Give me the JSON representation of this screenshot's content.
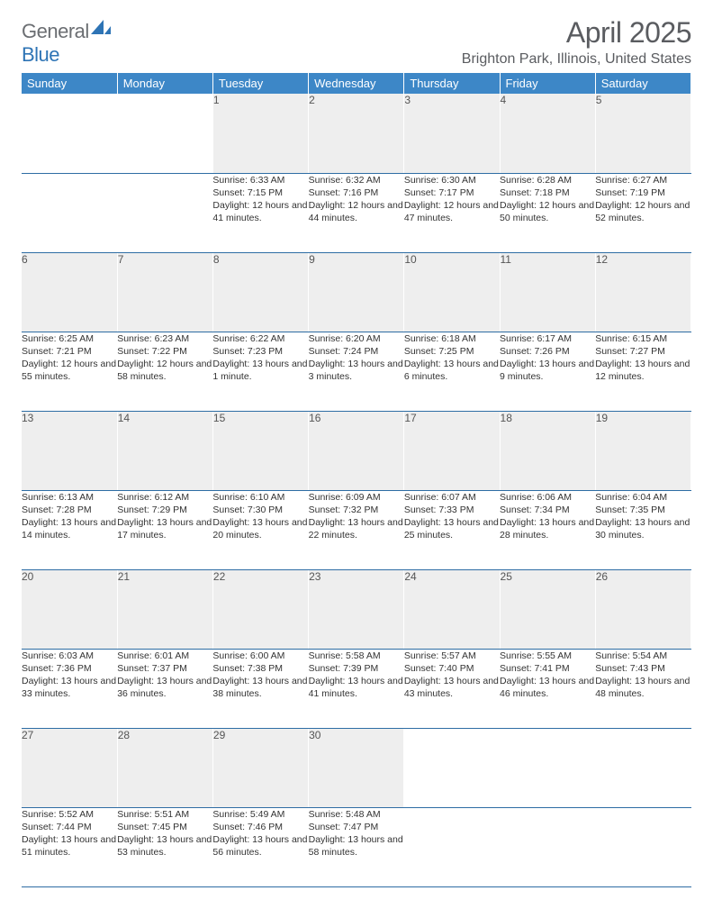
{
  "logo": {
    "top": "General",
    "bottom": "Blue"
  },
  "title": "April 2025",
  "location": "Brighton Park, Illinois, United States",
  "dayHeaders": [
    "Sunday",
    "Monday",
    "Tuesday",
    "Wednesday",
    "Thursday",
    "Friday",
    "Saturday"
  ],
  "colors": {
    "header_bg": "#3d87c7",
    "header_text": "#ffffff",
    "daynum_bg": "#eeeeee",
    "row_border": "#2e6da4",
    "title_color": "#5a5c60",
    "logo_gray": "#6b6e72",
    "logo_blue": "#2e74b5"
  },
  "weeks": [
    {
      "nums": [
        "",
        "",
        "1",
        "2",
        "3",
        "4",
        "5"
      ],
      "cells": [
        {
          "sunrise": "",
          "sunset": "",
          "daylight": ""
        },
        {
          "sunrise": "",
          "sunset": "",
          "daylight": ""
        },
        {
          "sunrise": "Sunrise: 6:33 AM",
          "sunset": "Sunset: 7:15 PM",
          "daylight": "Daylight: 12 hours and 41 minutes."
        },
        {
          "sunrise": "Sunrise: 6:32 AM",
          "sunset": "Sunset: 7:16 PM",
          "daylight": "Daylight: 12 hours and 44 minutes."
        },
        {
          "sunrise": "Sunrise: 6:30 AM",
          "sunset": "Sunset: 7:17 PM",
          "daylight": "Daylight: 12 hours and 47 minutes."
        },
        {
          "sunrise": "Sunrise: 6:28 AM",
          "sunset": "Sunset: 7:18 PM",
          "daylight": "Daylight: 12 hours and 50 minutes."
        },
        {
          "sunrise": "Sunrise: 6:27 AM",
          "sunset": "Sunset: 7:19 PM",
          "daylight": "Daylight: 12 hours and 52 minutes."
        }
      ]
    },
    {
      "nums": [
        "6",
        "7",
        "8",
        "9",
        "10",
        "11",
        "12"
      ],
      "cells": [
        {
          "sunrise": "Sunrise: 6:25 AM",
          "sunset": "Sunset: 7:21 PM",
          "daylight": "Daylight: 12 hours and 55 minutes."
        },
        {
          "sunrise": "Sunrise: 6:23 AM",
          "sunset": "Sunset: 7:22 PM",
          "daylight": "Daylight: 12 hours and 58 minutes."
        },
        {
          "sunrise": "Sunrise: 6:22 AM",
          "sunset": "Sunset: 7:23 PM",
          "daylight": "Daylight: 13 hours and 1 minute."
        },
        {
          "sunrise": "Sunrise: 6:20 AM",
          "sunset": "Sunset: 7:24 PM",
          "daylight": "Daylight: 13 hours and 3 minutes."
        },
        {
          "sunrise": "Sunrise: 6:18 AM",
          "sunset": "Sunset: 7:25 PM",
          "daylight": "Daylight: 13 hours and 6 minutes."
        },
        {
          "sunrise": "Sunrise: 6:17 AM",
          "sunset": "Sunset: 7:26 PM",
          "daylight": "Daylight: 13 hours and 9 minutes."
        },
        {
          "sunrise": "Sunrise: 6:15 AM",
          "sunset": "Sunset: 7:27 PM",
          "daylight": "Daylight: 13 hours and 12 minutes."
        }
      ]
    },
    {
      "nums": [
        "13",
        "14",
        "15",
        "16",
        "17",
        "18",
        "19"
      ],
      "cells": [
        {
          "sunrise": "Sunrise: 6:13 AM",
          "sunset": "Sunset: 7:28 PM",
          "daylight": "Daylight: 13 hours and 14 minutes."
        },
        {
          "sunrise": "Sunrise: 6:12 AM",
          "sunset": "Sunset: 7:29 PM",
          "daylight": "Daylight: 13 hours and 17 minutes."
        },
        {
          "sunrise": "Sunrise: 6:10 AM",
          "sunset": "Sunset: 7:30 PM",
          "daylight": "Daylight: 13 hours and 20 minutes."
        },
        {
          "sunrise": "Sunrise: 6:09 AM",
          "sunset": "Sunset: 7:32 PM",
          "daylight": "Daylight: 13 hours and 22 minutes."
        },
        {
          "sunrise": "Sunrise: 6:07 AM",
          "sunset": "Sunset: 7:33 PM",
          "daylight": "Daylight: 13 hours and 25 minutes."
        },
        {
          "sunrise": "Sunrise: 6:06 AM",
          "sunset": "Sunset: 7:34 PM",
          "daylight": "Daylight: 13 hours and 28 minutes."
        },
        {
          "sunrise": "Sunrise: 6:04 AM",
          "sunset": "Sunset: 7:35 PM",
          "daylight": "Daylight: 13 hours and 30 minutes."
        }
      ]
    },
    {
      "nums": [
        "20",
        "21",
        "22",
        "23",
        "24",
        "25",
        "26"
      ],
      "cells": [
        {
          "sunrise": "Sunrise: 6:03 AM",
          "sunset": "Sunset: 7:36 PM",
          "daylight": "Daylight: 13 hours and 33 minutes."
        },
        {
          "sunrise": "Sunrise: 6:01 AM",
          "sunset": "Sunset: 7:37 PM",
          "daylight": "Daylight: 13 hours and 36 minutes."
        },
        {
          "sunrise": "Sunrise: 6:00 AM",
          "sunset": "Sunset: 7:38 PM",
          "daylight": "Daylight: 13 hours and 38 minutes."
        },
        {
          "sunrise": "Sunrise: 5:58 AM",
          "sunset": "Sunset: 7:39 PM",
          "daylight": "Daylight: 13 hours and 41 minutes."
        },
        {
          "sunrise": "Sunrise: 5:57 AM",
          "sunset": "Sunset: 7:40 PM",
          "daylight": "Daylight: 13 hours and 43 minutes."
        },
        {
          "sunrise": "Sunrise: 5:55 AM",
          "sunset": "Sunset: 7:41 PM",
          "daylight": "Daylight: 13 hours and 46 minutes."
        },
        {
          "sunrise": "Sunrise: 5:54 AM",
          "sunset": "Sunset: 7:43 PM",
          "daylight": "Daylight: 13 hours and 48 minutes."
        }
      ]
    },
    {
      "nums": [
        "27",
        "28",
        "29",
        "30",
        "",
        "",
        ""
      ],
      "cells": [
        {
          "sunrise": "Sunrise: 5:52 AM",
          "sunset": "Sunset: 7:44 PM",
          "daylight": "Daylight: 13 hours and 51 minutes."
        },
        {
          "sunrise": "Sunrise: 5:51 AM",
          "sunset": "Sunset: 7:45 PM",
          "daylight": "Daylight: 13 hours and 53 minutes."
        },
        {
          "sunrise": "Sunrise: 5:49 AM",
          "sunset": "Sunset: 7:46 PM",
          "daylight": "Daylight: 13 hours and 56 minutes."
        },
        {
          "sunrise": "Sunrise: 5:48 AM",
          "sunset": "Sunset: 7:47 PM",
          "daylight": "Daylight: 13 hours and 58 minutes."
        },
        {
          "sunrise": "",
          "sunset": "",
          "daylight": ""
        },
        {
          "sunrise": "",
          "sunset": "",
          "daylight": ""
        },
        {
          "sunrise": "",
          "sunset": "",
          "daylight": ""
        }
      ]
    }
  ]
}
